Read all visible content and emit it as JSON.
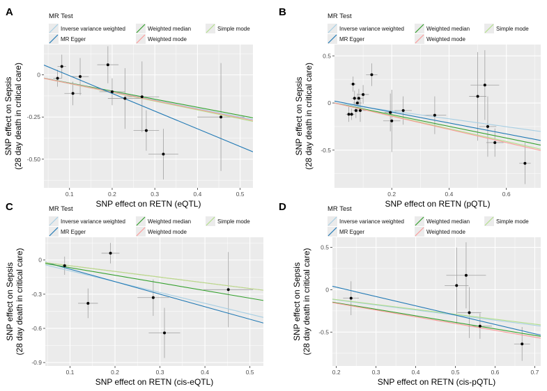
{
  "legend": {
    "title": "MR Test",
    "methods": [
      {
        "key": "ivw",
        "label": "Inverse variance weighted",
        "color": "#a6cee3"
      },
      {
        "key": "egger",
        "label": "MR Egger",
        "color": "#1f78b4"
      },
      {
        "key": "wmedian",
        "label": "Weighted median",
        "color": "#33a02c"
      },
      {
        "key": "wmode",
        "label": "Weighted mode",
        "color": "#fb9a99"
      },
      {
        "key": "smode",
        "label": "Simple mode",
        "color": "#b2df8a"
      }
    ]
  },
  "chart_data": [
    {
      "panel": "A",
      "type": "scatter",
      "xlabel": "SNP effect on RETN (eQTL)",
      "ylabel": [
        "SNP effect on Sepsis",
        "(28 day death in critical care)"
      ],
      "xlim": [
        0.04,
        0.53
      ],
      "ylim": [
        -0.67,
        0.18
      ],
      "xticks": [
        0.1,
        0.2,
        0.3,
        0.4,
        0.5
      ],
      "xtick_labels": [
        "0.1",
        "0.2",
        "0.3",
        "0.4",
        "0.5"
      ],
      "yticks": [
        0,
        -0.25,
        -0.5
      ],
      "ytick_labels": [
        "0",
        "-0.25",
        "-0.50"
      ],
      "points": [
        {
          "x": 0.072,
          "y": -0.02,
          "xerr": 0.01,
          "yerr": 0.05
        },
        {
          "x": 0.082,
          "y": 0.05,
          "xerr": 0.01,
          "yerr": 0.07
        },
        {
          "x": 0.108,
          "y": -0.11,
          "xerr": 0.02,
          "yerr": 0.07
        },
        {
          "x": 0.125,
          "y": -0.01,
          "xerr": 0.02,
          "yerr": 0.11
        },
        {
          "x": 0.19,
          "y": 0.06,
          "xerr": 0.025,
          "yerr": 0.11
        },
        {
          "x": 0.2,
          "y": -0.1,
          "xerr": 0.03,
          "yerr": 0.08
        },
        {
          "x": 0.23,
          "y": -0.14,
          "xerr": 0.04,
          "yerr": 0.18
        },
        {
          "x": 0.27,
          "y": -0.13,
          "xerr": 0.04,
          "yerr": 0.21
        },
        {
          "x": 0.28,
          "y": -0.33,
          "xerr": 0.03,
          "yerr": 0.12
        },
        {
          "x": 0.32,
          "y": -0.47,
          "xerr": 0.035,
          "yerr": 0.15
        },
        {
          "x": 0.455,
          "y": -0.25,
          "xerr": 0.055,
          "yerr": 0.32
        }
      ],
      "lines": [
        {
          "method": "wmedian",
          "slope": -0.48,
          "intercept": 0
        },
        {
          "method": "ivw",
          "slope": -0.5,
          "intercept": 0
        },
        {
          "method": "smode",
          "slope": -0.52,
          "intercept": 0
        },
        {
          "method": "wmode",
          "slope": -0.51,
          "intercept": 0
        },
        {
          "method": "egger",
          "slope": -1.05,
          "intercept": 0.1
        }
      ]
    },
    {
      "panel": "B",
      "type": "scatter",
      "xlabel": "SNP effect on RETN (pQTL)",
      "ylabel": [
        "SNP effect on Sepsis",
        "(28 day death in critical care)"
      ],
      "xlim": [
        0.0,
        0.72
      ],
      "ylim": [
        -0.9,
        0.62
      ],
      "xticks": [
        0.2,
        0.4,
        0.6
      ],
      "xtick_labels": [
        "0.2",
        "0.4",
        "0.6"
      ],
      "yticks": [
        0.5,
        0,
        -0.5
      ],
      "ytick_labels": [
        "0.5",
        "0",
        "-0.5"
      ],
      "points": [
        {
          "x": 0.05,
          "y": -0.12,
          "xerr": 0.01,
          "yerr": 0.08
        },
        {
          "x": 0.06,
          "y": -0.12,
          "xerr": 0.01,
          "yerr": 0.06
        },
        {
          "x": 0.065,
          "y": 0.2,
          "xerr": 0.01,
          "yerr": 0.08
        },
        {
          "x": 0.07,
          "y": 0.05,
          "xerr": 0.01,
          "yerr": 0.08
        },
        {
          "x": 0.075,
          "y": -0.08,
          "xerr": 0.01,
          "yerr": 0.08
        },
        {
          "x": 0.08,
          "y": 0.0,
          "xerr": 0.015,
          "yerr": 0.1
        },
        {
          "x": 0.085,
          "y": 0.05,
          "xerr": 0.015,
          "yerr": 0.1
        },
        {
          "x": 0.09,
          "y": -0.08,
          "xerr": 0.02,
          "yerr": 0.12
        },
        {
          "x": 0.1,
          "y": 0.09,
          "xerr": 0.02,
          "yerr": 0.1
        },
        {
          "x": 0.13,
          "y": 0.3,
          "xerr": 0.02,
          "yerr": 0.12
        },
        {
          "x": 0.195,
          "y": -0.1,
          "xerr": 0.02,
          "yerr": 0.2
        },
        {
          "x": 0.2,
          "y": -0.19,
          "xerr": 0.03,
          "yerr": 0.33
        },
        {
          "x": 0.24,
          "y": -0.08,
          "xerr": 0.03,
          "yerr": 0.15
        },
        {
          "x": 0.35,
          "y": -0.13,
          "xerr": 0.04,
          "yerr": 0.2
        },
        {
          "x": 0.5,
          "y": 0.07,
          "xerr": 0.03,
          "yerr": 0.47
        },
        {
          "x": 0.525,
          "y": 0.19,
          "xerr": 0.05,
          "yerr": 0.37
        },
        {
          "x": 0.535,
          "y": -0.25,
          "xerr": 0.03,
          "yerr": 0.32
        },
        {
          "x": 0.56,
          "y": -0.42,
          "xerr": 0.03,
          "yerr": 0.15
        },
        {
          "x": 0.665,
          "y": -0.64,
          "xerr": 0.02,
          "yerr": 0.22
        }
      ],
      "lines": [
        {
          "method": "ivw",
          "slope": -0.42,
          "intercept": 0
        },
        {
          "method": "egger",
          "slope": -0.58,
          "intercept": 0.02
        },
        {
          "method": "wmedian",
          "slope": -0.62,
          "intercept": 0
        },
        {
          "method": "smode",
          "slope": -0.68,
          "intercept": 0
        },
        {
          "method": "wmode",
          "slope": -0.7,
          "intercept": 0
        }
      ]
    },
    {
      "panel": "C",
      "type": "scatter",
      "xlabel": "SNP effect on RETN (cis-eQTL)",
      "ylabel": [
        "SNP effect on Sepsis",
        "(28 day death in critical care)"
      ],
      "xlim": [
        0.045,
        0.53
      ],
      "ylim": [
        -0.93,
        0.2
      ],
      "xticks": [
        0.1,
        0.2,
        0.3,
        0.4,
        0.5
      ],
      "xtick_labels": [
        "0.1",
        "0.2",
        "0.3",
        "0.4",
        "0.5"
      ],
      "yticks": [
        0,
        -0.3,
        -0.6,
        -0.9
      ],
      "ytick_labels": [
        "0",
        "-0.3",
        "-0.6",
        "-0.9"
      ],
      "points": [
        {
          "x": 0.088,
          "y": -0.05,
          "xerr": 0.005,
          "yerr": 0.08
        },
        {
          "x": 0.14,
          "y": -0.38,
          "xerr": 0.022,
          "yerr": 0.13
        },
        {
          "x": 0.19,
          "y": 0.06,
          "xerr": 0.02,
          "yerr": 0.09
        },
        {
          "x": 0.285,
          "y": -0.33,
          "xerr": 0.035,
          "yerr": 0.16
        },
        {
          "x": 0.31,
          "y": -0.64,
          "xerr": 0.035,
          "yerr": 0.22
        },
        {
          "x": 0.452,
          "y": -0.26,
          "xerr": 0.055,
          "yerr": 0.33
        }
      ],
      "lines": [
        {
          "method": "ivw",
          "slope": -0.95,
          "intercept": 0
        },
        {
          "method": "egger",
          "slope": -1.1,
          "intercept": 0.03
        },
        {
          "method": "wmedian",
          "slope": -0.67,
          "intercept": 0
        },
        {
          "method": "wmode",
          "slope": -0.5,
          "intercept": 0
        },
        {
          "method": "smode",
          "slope": -0.5,
          "intercept": 0
        }
      ]
    },
    {
      "panel": "D",
      "type": "scatter",
      "xlabel": "SNP effect on RETN (cis-pQTL)",
      "ylabel": [
        "SNP effect on Sepsis",
        "(28 day death in critical care)"
      ],
      "xlim": [
        0.19,
        0.715
      ],
      "ylim": [
        -0.9,
        0.62
      ],
      "xticks": [
        0.2,
        0.3,
        0.4,
        0.5,
        0.6,
        0.7
      ],
      "xtick_labels": [
        "0.2",
        "0.3",
        "0.4",
        "0.5",
        "0.6",
        "0.7"
      ],
      "yticks": [
        0.5,
        0,
        -0.5
      ],
      "ytick_labels": [
        "0.5",
        "0",
        "-0.5"
      ],
      "points": [
        {
          "x": 0.237,
          "y": -0.1,
          "xerr": 0.02,
          "yerr": 0.2
        },
        {
          "x": 0.503,
          "y": 0.05,
          "xerr": 0.03,
          "yerr": 0.45
        },
        {
          "x": 0.527,
          "y": 0.17,
          "xerr": 0.05,
          "yerr": 0.39
        },
        {
          "x": 0.535,
          "y": -0.27,
          "xerr": 0.03,
          "yerr": 0.3
        },
        {
          "x": 0.562,
          "y": -0.43,
          "xerr": 0.03,
          "yerr": 0.15
        },
        {
          "x": 0.668,
          "y": -0.64,
          "xerr": 0.02,
          "yerr": 0.2
        }
      ],
      "lines": [
        {
          "method": "ivw",
          "slope": -0.6,
          "intercept": 0
        },
        {
          "method": "smode",
          "slope": -0.58,
          "intercept": 0
        },
        {
          "method": "egger",
          "slope": -1.1,
          "intercept": 0.25
        },
        {
          "method": "wmedian",
          "slope": -0.77,
          "intercept": 0
        },
        {
          "method": "wmode",
          "slope": -0.8,
          "intercept": 0
        }
      ]
    }
  ]
}
